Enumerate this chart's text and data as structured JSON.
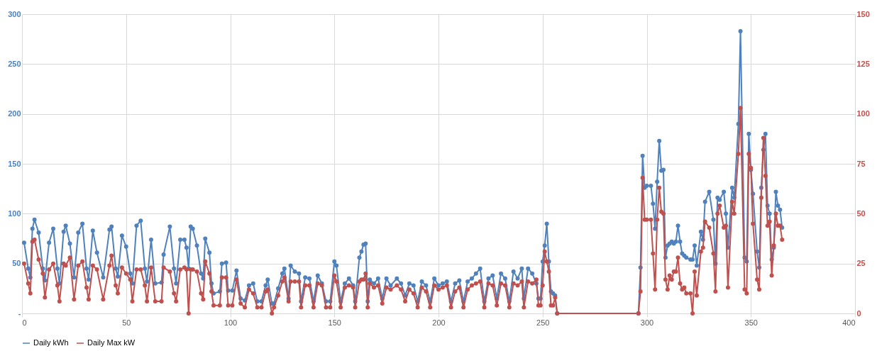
{
  "chart_data": {
    "type": "line",
    "x": [
      1,
      3,
      4,
      5,
      6,
      8,
      10,
      11,
      13,
      15,
      17,
      18,
      20,
      21,
      23,
      25,
      27,
      29,
      31,
      32,
      34,
      36,
      39,
      42,
      43,
      45,
      46,
      48,
      50,
      52,
      53,
      55,
      57,
      59,
      60,
      62,
      64,
      67,
      68,
      71,
      73,
      74,
      76,
      78,
      79,
      80,
      81,
      82,
      84,
      86,
      87,
      88,
      90,
      91,
      92,
      95,
      96,
      98,
      99,
      101,
      103,
      105,
      107,
      109,
      111,
      113,
      115,
      117,
      118,
      120,
      121,
      123,
      125,
      126,
      128,
      129,
      131,
      133,
      134,
      136,
      138,
      140,
      142,
      144,
      146,
      148,
      150,
      151,
      153,
      155,
      157,
      159,
      160,
      162,
      163,
      164,
      165,
      166,
      167,
      169,
      171,
      173,
      175,
      177,
      180,
      182,
      184,
      186,
      188,
      190,
      192,
      194,
      196,
      198,
      200,
      202,
      204,
      206,
      208,
      210,
      212,
      214,
      216,
      218,
      220,
      222,
      224,
      226,
      228,
      230,
      232,
      234,
      236,
      238,
      240,
      241,
      243,
      245,
      247,
      248,
      249,
      250,
      251,
      252,
      253,
      254,
      255,
      256,
      257,
      296,
      297,
      298,
      299,
      300,
      302,
      303,
      304,
      305,
      306,
      307,
      308,
      309,
      310,
      311,
      312,
      313,
      314,
      315,
      316,
      317,
      318,
      319,
      321,
      322,
      323,
      324,
      326,
      327,
      328,
      330,
      332,
      333,
      334,
      335,
      337,
      338,
      339,
      341,
      342,
      344,
      345,
      347,
      348,
      349,
      350,
      351,
      353,
      354,
      355,
      356,
      357,
      358,
      359,
      360,
      361,
      362,
      363,
      364,
      365
    ],
    "series": [
      {
        "name": "Daily kWh",
        "color": "#4f81bd",
        "values": [
          71,
          45,
          36,
          85,
          94,
          81,
          45,
          33,
          71,
          85,
          45,
          30,
          82,
          88,
          70,
          36,
          81,
          90,
          45,
          34,
          83,
          61,
          36,
          84,
          87,
          45,
          37,
          78,
          67,
          40,
          30,
          88,
          93,
          45,
          32,
          74,
          30,
          31,
          59,
          87,
          45,
          30,
          74,
          74,
          66,
          45,
          87,
          85,
          68,
          40,
          35,
          75,
          61,
          30,
          20,
          22,
          50,
          51,
          23,
          23,
          43,
          15,
          13,
          28,
          30,
          12,
          12,
          28,
          34,
          10,
          10,
          25,
          40,
          45,
          15,
          48,
          42,
          40,
          12,
          36,
          35,
          12,
          38,
          30,
          12,
          12,
          52,
          48,
          12,
          30,
          35,
          28,
          12,
          56,
          62,
          69,
          70,
          12,
          34,
          30,
          35,
          15,
          35,
          28,
          35,
          30,
          18,
          30,
          28,
          12,
          32,
          28,
          12,
          35,
          28,
          30,
          32,
          12,
          30,
          33,
          12,
          32,
          35,
          40,
          45,
          12,
          35,
          38,
          15,
          40,
          35,
          12,
          42,
          35,
          45,
          15,
          45,
          40,
          30,
          15,
          15,
          52,
          68,
          90,
          52,
          22,
          20,
          18,
          0,
          0,
          46,
          158,
          126,
          128,
          128,
          110,
          85,
          132,
          173,
          143,
          144,
          56,
          68,
          70,
          72,
          70,
          72,
          88,
          72,
          60,
          58,
          56,
          54,
          54,
          68,
          48,
          82,
          74,
          112,
          122,
          94,
          50,
          116,
          114,
          122,
          100,
          66,
          126,
          116,
          190,
          283,
          56,
          52,
          180,
          144,
          120,
          62,
          46,
          126,
          164,
          180,
          108,
          100,
          54,
          66,
          122,
          108,
          104,
          86
        ]
      },
      {
        "name": "Daily Max kW",
        "color": "#c0504d",
        "axis": "y2",
        "values": [
          25,
          15,
          10,
          36,
          37,
          27,
          20,
          8,
          22,
          25,
          14,
          6,
          25,
          24,
          28,
          7,
          24,
          26,
          13,
          7,
          24,
          22,
          7,
          24,
          29,
          14,
          10,
          23,
          20,
          17,
          6,
          22,
          22,
          14,
          6,
          23,
          6,
          6,
          23,
          21,
          10,
          6,
          22,
          23,
          22,
          0,
          22,
          22,
          21,
          10,
          7,
          26,
          20,
          11,
          4,
          4,
          18,
          18,
          4,
          4,
          17,
          5,
          3,
          12,
          10,
          3,
          3,
          11,
          12,
          0,
          3,
          9,
          16,
          18,
          6,
          16,
          16,
          16,
          3,
          14,
          14,
          3,
          15,
          14,
          3,
          3,
          19,
          16,
          3,
          13,
          14,
          13,
          3,
          16,
          17,
          17,
          20,
          3,
          15,
          13,
          14,
          5,
          13,
          12,
          14,
          12,
          6,
          12,
          10,
          3,
          13,
          11,
          3,
          14,
          12,
          13,
          14,
          3,
          11,
          13,
          3,
          12,
          14,
          15,
          16,
          3,
          15,
          14,
          4,
          15,
          14,
          3,
          15,
          14,
          16,
          3,
          16,
          15,
          17,
          4,
          4,
          14,
          31,
          26,
          21,
          4,
          4,
          8,
          0,
          0,
          11,
          68,
          47,
          47,
          47,
          30,
          12,
          47,
          63,
          51,
          50,
          17,
          12,
          19,
          17,
          21,
          21,
          28,
          15,
          12,
          13,
          10,
          10,
          0,
          21,
          9,
          31,
          33,
          46,
          43,
          30,
          11,
          50,
          54,
          43,
          44,
          13,
          56,
          50,
          80,
          103,
          12,
          10,
          80,
          73,
          45,
          17,
          12,
          58,
          88,
          69,
          44,
          46,
          19,
          34,
          50,
          44,
          44,
          37
        ]
      }
    ],
    "xlim": [
      0,
      400
    ],
    "xticks": [
      0,
      50,
      100,
      150,
      200,
      250,
      300,
      350,
      400
    ],
    "ylim": [
      0,
      300
    ],
    "yticks": [
      {
        "value": 0,
        "label": "-"
      },
      50,
      100,
      150,
      200,
      250,
      300
    ],
    "y2lim": [
      0,
      150
    ],
    "y2ticks": [
      0,
      25,
      50,
      75,
      100,
      125,
      150
    ],
    "grid": true,
    "legend": "bottom",
    "marker": "circle",
    "line_style": "solid"
  }
}
